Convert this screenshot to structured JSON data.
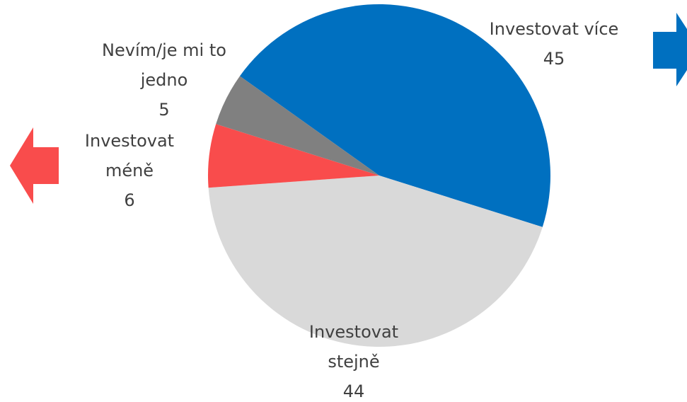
{
  "chart_data": {
    "type": "pie",
    "categories": [
      "Investovat více",
      "Investovat stejně",
      "Investovat méně",
      "Nevím/je mi to jedno"
    ],
    "values": [
      45,
      44,
      6,
      5
    ],
    "colors": [
      "#0070c0",
      "#d9d9d9",
      "#f94c4c",
      "#808080"
    ]
  }
}
